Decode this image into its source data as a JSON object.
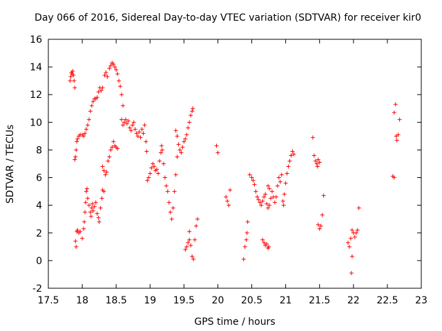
{
  "chart_data": {
    "type": "scatter",
    "title": "Day 066 of 2016, Sidereal Day-to-day VTEC variation (SDTVAR) for receiver kir0",
    "xlabel": "GPS time / hours",
    "ylabel": "SDTVAR / TECUs",
    "xlim": [
      17.5,
      23
    ],
    "ylim": [
      -2,
      16
    ],
    "xticks": [
      "17.5",
      "18",
      "18.5",
      "19",
      "19.5",
      "20",
      "20.5",
      "21",
      "21.5",
      "22",
      "22.5",
      "23"
    ],
    "yticks": [
      "-2",
      "0",
      "2",
      "4",
      "6",
      "8",
      "10",
      "12",
      "14",
      "16"
    ],
    "grid": false,
    "marker": "+",
    "series": [
      {
        "name": "SDTVAR",
        "color": "#ff0000",
        "points": [
          [
            17.82,
            13.0
          ],
          [
            17.83,
            13.3
          ],
          [
            17.84,
            13.6
          ],
          [
            17.85,
            13.5
          ],
          [
            17.86,
            13.7
          ],
          [
            17.87,
            13.4
          ],
          [
            17.88,
            13.0
          ],
          [
            17.89,
            12.5
          ],
          [
            17.89,
            7.3
          ],
          [
            17.9,
            7.5
          ],
          [
            17.91,
            8.0
          ],
          [
            17.92,
            8.6
          ],
          [
            17.93,
            8.8
          ],
          [
            17.95,
            9.0
          ],
          [
            17.97,
            9.1
          ],
          [
            18.0,
            9.1
          ],
          [
            18.02,
            9.0
          ],
          [
            18.04,
            9.2
          ],
          [
            18.06,
            9.5
          ],
          [
            18.08,
            9.8
          ],
          [
            18.1,
            10.2
          ],
          [
            18.12,
            10.8
          ],
          [
            18.14,
            11.2
          ],
          [
            18.16,
            11.5
          ],
          [
            18.18,
            11.7
          ],
          [
            18.2,
            11.7
          ],
          [
            18.22,
            11.8
          ],
          [
            18.24,
            12.2
          ],
          [
            18.26,
            12.5
          ],
          [
            18.28,
            12.3
          ],
          [
            18.3,
            12.5
          ],
          [
            18.33,
            13.4
          ],
          [
            18.35,
            13.6
          ],
          [
            18.37,
            13.3
          ],
          [
            18.4,
            13.9
          ],
          [
            18.42,
            14.1
          ],
          [
            18.44,
            14.3
          ],
          [
            18.46,
            14.2
          ],
          [
            18.48,
            14.0
          ],
          [
            18.5,
            13.8
          ],
          [
            18.52,
            13.5
          ],
          [
            18.54,
            13.0
          ],
          [
            18.56,
            12.6
          ],
          [
            18.58,
            12.0
          ],
          [
            18.6,
            11.2
          ],
          [
            18.58,
            10.2
          ],
          [
            18.6,
            9.8
          ],
          [
            18.62,
            10.0
          ],
          [
            18.64,
            10.2
          ],
          [
            18.66,
            9.9
          ],
          [
            18.68,
            10.1
          ],
          [
            18.7,
            9.6
          ],
          [
            18.72,
            9.4
          ],
          [
            18.74,
            9.8
          ],
          [
            18.76,
            10.0
          ],
          [
            18.78,
            9.5
          ],
          [
            18.8,
            9.2
          ],
          [
            18.82,
            9.0
          ],
          [
            18.84,
            9.3
          ],
          [
            18.86,
            8.9
          ],
          [
            18.88,
            9.5
          ],
          [
            18.9,
            9.2
          ],
          [
            18.92,
            9.8
          ],
          [
            18.94,
            8.6
          ],
          [
            18.95,
            7.9
          ],
          [
            17.9,
            1.4
          ],
          [
            17.91,
            1.0
          ],
          [
            17.92,
            2.1
          ],
          [
            17.93,
            2.2
          ],
          [
            17.95,
            2.0
          ],
          [
            17.97,
            2.1
          ],
          [
            18.0,
            1.6
          ],
          [
            18.02,
            2.3
          ],
          [
            18.03,
            2.8
          ],
          [
            18.04,
            3.5
          ],
          [
            18.05,
            4.2
          ],
          [
            18.06,
            5.0
          ],
          [
            18.07,
            5.2
          ],
          [
            18.08,
            4.5
          ],
          [
            18.1,
            4.0
          ],
          [
            18.12,
            3.5
          ],
          [
            18.13,
            3.2
          ],
          [
            18.14,
            3.8
          ],
          [
            18.15,
            4.1
          ],
          [
            18.16,
            3.6
          ],
          [
            18.18,
            3.9
          ],
          [
            18.2,
            4.2
          ],
          [
            18.22,
            3.4
          ],
          [
            18.24,
            3.1
          ],
          [
            18.25,
            2.8
          ],
          [
            18.27,
            3.8
          ],
          [
            18.29,
            4.5
          ],
          [
            18.3,
            5.1
          ],
          [
            18.32,
            5.0
          ],
          [
            18.3,
            6.8
          ],
          [
            18.32,
            6.5
          ],
          [
            18.34,
            6.2
          ],
          [
            18.36,
            6.4
          ],
          [
            18.38,
            7.2
          ],
          [
            18.4,
            7.5
          ],
          [
            18.42,
            8.0
          ],
          [
            18.44,
            8.2
          ],
          [
            18.46,
            8.6
          ],
          [
            18.48,
            8.3
          ],
          [
            18.5,
            8.2
          ],
          [
            18.52,
            8.1
          ],
          [
            18.96,
            5.8
          ],
          [
            18.98,
            6.0
          ],
          [
            19.0,
            6.3
          ],
          [
            19.02,
            6.7
          ],
          [
            19.04,
            7.0
          ],
          [
            19.06,
            6.8
          ],
          [
            19.08,
            6.5
          ],
          [
            19.1,
            6.6
          ],
          [
            19.12,
            6.3
          ],
          [
            19.14,
            7.2
          ],
          [
            19.16,
            7.8
          ],
          [
            19.17,
            8.3
          ],
          [
            19.18,
            8.0
          ],
          [
            19.2,
            7.0
          ],
          [
            19.22,
            6.0
          ],
          [
            19.24,
            5.4
          ],
          [
            19.26,
            5.0
          ],
          [
            19.28,
            4.2
          ],
          [
            19.3,
            3.5
          ],
          [
            19.32,
            3.0
          ],
          [
            19.34,
            3.8
          ],
          [
            19.36,
            5.0
          ],
          [
            19.38,
            6.2
          ],
          [
            19.4,
            7.5
          ],
          [
            19.42,
            8.4
          ],
          [
            19.44,
            8.0
          ],
          [
            19.46,
            7.8
          ],
          [
            19.48,
            8.2
          ],
          [
            19.5,
            8.6
          ],
          [
            19.52,
            8.8
          ],
          [
            19.54,
            9.1
          ],
          [
            19.56,
            9.6
          ],
          [
            19.58,
            10.0
          ],
          [
            19.6,
            10.5
          ],
          [
            19.62,
            10.8
          ],
          [
            19.63,
            11.0
          ],
          [
            19.38,
            9.4
          ],
          [
            19.4,
            9.0
          ],
          [
            19.52,
            0.8
          ],
          [
            19.54,
            1.0
          ],
          [
            19.56,
            1.3
          ],
          [
            19.58,
            1.5
          ],
          [
            19.6,
            1.1
          ],
          [
            19.62,
            0.3
          ],
          [
            19.64,
            0.1
          ],
          [
            19.66,
            1.5
          ],
          [
            19.68,
            2.5
          ],
          [
            19.7,
            3.0
          ],
          [
            19.58,
            2.1
          ],
          [
            19.98,
            8.3
          ],
          [
            20.0,
            7.8
          ],
          [
            20.12,
            4.6
          ],
          [
            20.14,
            4.3
          ],
          [
            20.16,
            4.0
          ],
          [
            20.18,
            5.1
          ],
          [
            20.38,
            0.1
          ],
          [
            20.4,
            1.0
          ],
          [
            20.42,
            1.5
          ],
          [
            20.43,
            2.0
          ],
          [
            20.44,
            2.8
          ],
          [
            20.47,
            6.2
          ],
          [
            20.5,
            6.0
          ],
          [
            20.52,
            5.8
          ],
          [
            20.54,
            5.5
          ],
          [
            20.56,
            5.0
          ],
          [
            20.58,
            4.6
          ],
          [
            20.6,
            4.4
          ],
          [
            20.62,
            4.2
          ],
          [
            20.64,
            4.0
          ],
          [
            20.66,
            4.3
          ],
          [
            20.68,
            4.6
          ],
          [
            20.7,
            4.8
          ],
          [
            20.72,
            4.1
          ],
          [
            20.74,
            3.8
          ],
          [
            20.76,
            4.0
          ],
          [
            20.78,
            4.5
          ],
          [
            20.8,
            5.0
          ],
          [
            20.82,
            4.6
          ],
          [
            20.84,
            4.2
          ],
          [
            20.86,
            4.6
          ],
          [
            20.88,
            5.4
          ],
          [
            20.9,
            6.0
          ],
          [
            20.92,
            5.7
          ],
          [
            20.94,
            6.2
          ],
          [
            20.96,
            4.3
          ],
          [
            20.97,
            4.0
          ],
          [
            20.98,
            4.8
          ],
          [
            21.0,
            5.6
          ],
          [
            21.02,
            6.3
          ],
          [
            21.04,
            6.8
          ],
          [
            21.06,
            7.2
          ],
          [
            21.08,
            7.6
          ],
          [
            21.1,
            7.9
          ],
          [
            21.12,
            7.7
          ],
          [
            20.74,
            5.4
          ],
          [
            20.76,
            5.2
          ],
          [
            20.66,
            1.5
          ],
          [
            20.68,
            1.3
          ],
          [
            20.7,
            1.1
          ],
          [
            20.72,
            1.2
          ],
          [
            20.74,
            0.9
          ],
          [
            20.75,
            1.0
          ],
          [
            21.4,
            8.9
          ],
          [
            21.42,
            7.6
          ],
          [
            21.44,
            7.2
          ],
          [
            21.46,
            7.0
          ],
          [
            21.48,
            7.3
          ],
          [
            21.5,
            7.1
          ],
          [
            21.47,
            6.8
          ],
          [
            21.48,
            2.6
          ],
          [
            21.5,
            2.3
          ],
          [
            21.52,
            2.5
          ],
          [
            21.54,
            3.3
          ],
          [
            21.56,
            4.7
          ],
          [
            21.92,
            1.3
          ],
          [
            21.94,
            1.0
          ],
          [
            21.96,
            1.6
          ],
          [
            21.98,
            2.2
          ],
          [
            22.0,
            2.0
          ],
          [
            22.02,
            1.7
          ],
          [
            22.04,
            2.0
          ],
          [
            22.06,
            2.2
          ],
          [
            22.08,
            3.8
          ],
          [
            21.98,
            0.3
          ],
          [
            21.97,
            -0.9
          ],
          [
            22.58,
            6.1
          ],
          [
            22.6,
            6.0
          ],
          [
            22.6,
            10.7
          ],
          [
            22.62,
            11.3
          ],
          [
            22.63,
            9.0
          ],
          [
            22.64,
            8.7
          ],
          [
            22.66,
            9.1
          ],
          [
            22.68,
            10.2
          ]
        ]
      }
    ]
  }
}
